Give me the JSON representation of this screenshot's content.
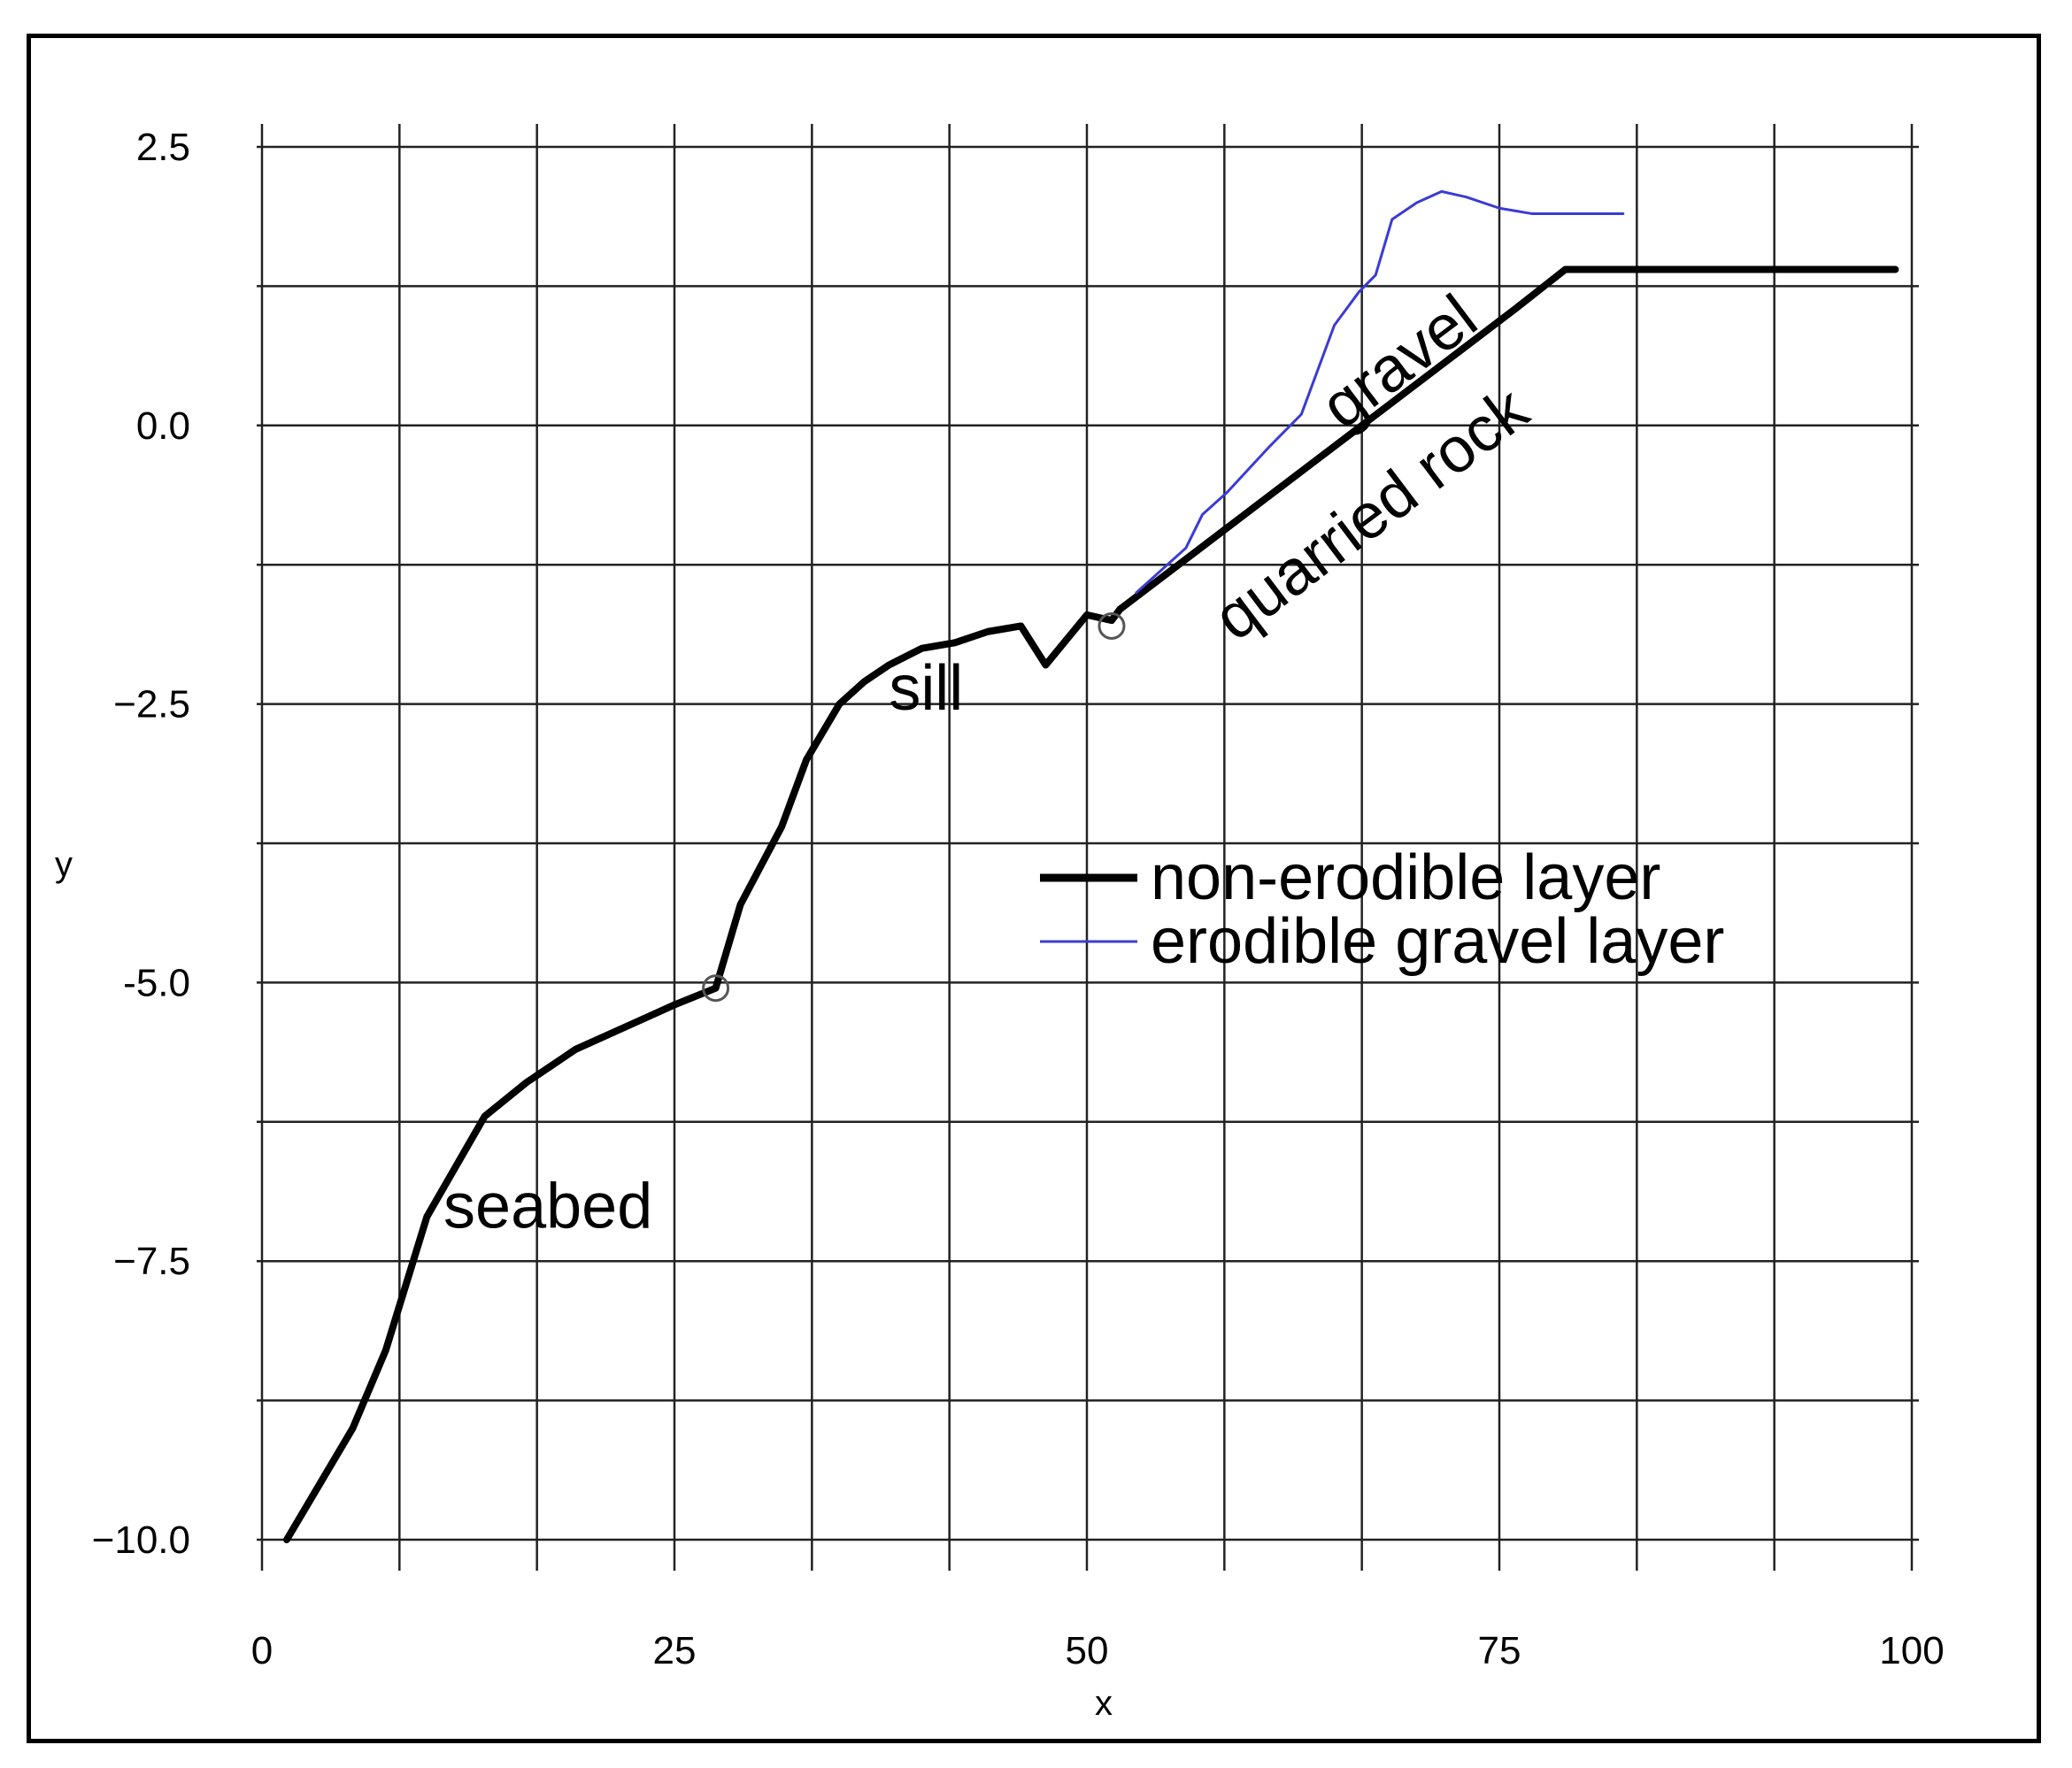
{
  "chart_data": {
    "type": "line",
    "title": "",
    "xlabel": "x",
    "ylabel": "y",
    "xlim": [
      0,
      100
    ],
    "ylim": [
      -10,
      2.5
    ],
    "x_ticks": [
      0,
      25,
      50,
      75,
      100
    ],
    "y_ticks": [
      2.5,
      0.0,
      -2.5,
      -5.0,
      -7.5,
      -10.0
    ],
    "x_tick_labels": [
      "0",
      "25",
      "50",
      "75",
      "100"
    ],
    "y_tick_labels": [
      "2.5",
      "0.0",
      "−2.5",
      "-5.0",
      "−7.5",
      "−10.0"
    ],
    "grid": true,
    "legend_position": "center-right",
    "series": [
      {
        "name": "non-erodible layer",
        "color": "#000000",
        "x": [
          1.5,
          3.5,
          5.5,
          7.5,
          10,
          13.5,
          16,
          19,
          22,
          25,
          27.5,
          29,
          31.5,
          33,
          35,
          36.5,
          38,
          40,
          42,
          44,
          46,
          47.5,
          50,
          51.5,
          52,
          56,
          60,
          64,
          68,
          72,
          76,
          79,
          82,
          86,
          90,
          95,
          99
        ],
        "y": [
          -10,
          -9.5,
          -9,
          -8.3,
          -7.1,
          -6.2,
          -5.9,
          -5.6,
          -5.4,
          -5.2,
          -5.05,
          -4.3,
          -3.6,
          -3.0,
          -2.5,
          -2.3,
          -2.15,
          -2.0,
          -1.95,
          -1.85,
          -1.8,
          -2.15,
          -1.7,
          -1.75,
          -1.65,
          -1.2,
          -0.75,
          -0.3,
          0.15,
          0.6,
          1.05,
          1.4,
          1.4,
          1.4,
          1.4,
          1.4,
          1.4
        ]
      },
      {
        "name": "erodible gravel layer",
        "color": "#3b3bd6",
        "x": [
          53,
          56,
          57,
          58.5,
          61,
          63,
          65,
          66.5,
          67.5,
          68.5,
          70,
          71.5,
          73,
          75,
          77,
          80,
          82.5
        ],
        "y": [
          -1.5,
          -1.1,
          -0.8,
          -0.6,
          -0.2,
          0.1,
          0.9,
          1.2,
          1.35,
          1.85,
          2.0,
          2.1,
          2.05,
          1.95,
          1.9,
          1.9,
          1.9
        ]
      }
    ],
    "markers": [
      {
        "x": 27.5,
        "y": -5.05
      },
      {
        "x": 51.5,
        "y": -1.8
      }
    ],
    "annotations": [
      {
        "text": "seabed",
        "x": 11,
        "y": -7.2,
        "rotation": 0
      },
      {
        "text": "sill",
        "x": 38,
        "y": -2.55,
        "rotation": 0
      },
      {
        "text": "gravel",
        "x": 65.5,
        "y": -0.05,
        "rotation": -37
      },
      {
        "text": "quarried rock",
        "x": 59,
        "y": -1.95,
        "rotation": -37
      }
    ]
  }
}
